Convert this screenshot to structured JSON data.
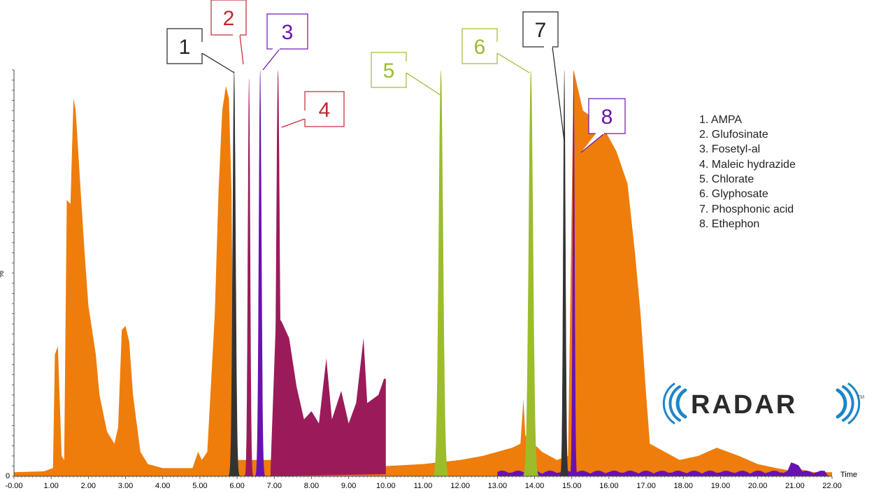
{
  "chart_data": {
    "type": "area",
    "xlabel": "Time",
    "ylabel": "%",
    "xlim": [
      0.0,
      22.0
    ],
    "ylim": [
      0,
      100
    ],
    "x_tick_labels": [
      "-0.00",
      "1.00",
      "2.00",
      "3.00",
      "4.00",
      "5.00",
      "6.00",
      "7.00",
      "8.00",
      "9.00",
      "10.00",
      "11.00",
      "12.00",
      "13.00",
      "14.00",
      "15.00",
      "16.00",
      "17.00",
      "18.00",
      "19.00",
      "20.00",
      "21.00",
      "22.00"
    ],
    "y_tick_labels": [
      "0",
      "%"
    ],
    "colors": {
      "orange": "#ef7d0b",
      "maroon": "#9b1b5a",
      "purple": "#6a12b0",
      "black": "#333333",
      "green": "#9cbc2c",
      "red": "#c0262e"
    },
    "background_series": {
      "name": "",
      "color": "#ef7d0b",
      "points": [
        [
          0.0,
          1
        ],
        [
          0.8,
          1.2
        ],
        [
          1.05,
          2
        ],
        [
          1.1,
          30
        ],
        [
          1.18,
          32
        ],
        [
          1.28,
          5
        ],
        [
          1.35,
          4
        ],
        [
          1.42,
          68
        ],
        [
          1.52,
          67
        ],
        [
          1.6,
          93
        ],
        [
          1.66,
          90
        ],
        [
          1.78,
          72
        ],
        [
          1.9,
          55
        ],
        [
          2.0,
          42
        ],
        [
          2.1,
          36
        ],
        [
          2.2,
          30
        ],
        [
          2.3,
          20
        ],
        [
          2.5,
          11
        ],
        [
          2.7,
          8
        ],
        [
          2.8,
          12
        ],
        [
          2.9,
          36
        ],
        [
          3.0,
          37
        ],
        [
          3.1,
          33
        ],
        [
          3.2,
          20
        ],
        [
          3.4,
          6
        ],
        [
          3.6,
          3
        ],
        [
          4.0,
          2
        ],
        [
          4.8,
          2
        ],
        [
          4.95,
          6
        ],
        [
          5.05,
          4
        ],
        [
          5.2,
          6
        ],
        [
          5.4,
          40
        ],
        [
          5.5,
          70
        ],
        [
          5.6,
          90
        ],
        [
          5.7,
          96
        ],
        [
          5.78,
          93
        ],
        [
          5.85,
          70
        ],
        [
          5.9,
          20
        ],
        [
          6.0,
          4
        ],
        [
          7.0,
          4
        ],
        [
          7.2,
          2.5
        ],
        [
          10.0,
          2.5
        ],
        [
          11.0,
          3
        ],
        [
          12.0,
          4
        ],
        [
          12.6,
          5
        ],
        [
          13.0,
          6
        ],
        [
          13.4,
          7
        ],
        [
          13.62,
          8
        ],
        [
          13.7,
          19
        ],
        [
          13.75,
          10
        ],
        [
          14.2,
          6
        ],
        [
          14.6,
          4
        ],
        [
          14.9,
          5
        ],
        [
          15.05,
          100
        ],
        [
          15.3,
          90
        ],
        [
          15.6,
          88
        ],
        [
          15.9,
          85
        ],
        [
          16.2,
          80
        ],
        [
          16.5,
          72
        ],
        [
          16.7,
          55
        ],
        [
          16.85,
          40
        ],
        [
          17.0,
          20
        ],
        [
          17.1,
          8
        ],
        [
          17.5,
          6
        ],
        [
          17.9,
          4
        ],
        [
          18.4,
          5
        ],
        [
          18.9,
          7
        ],
        [
          19.5,
          5
        ],
        [
          20.0,
          3
        ],
        [
          20.5,
          2
        ],
        [
          20.8,
          1.5
        ],
        [
          21.0,
          2
        ],
        [
          21.5,
          1
        ],
        [
          22.0,
          1
        ]
      ]
    },
    "noise_series": {
      "name": "",
      "color": "#9b1b5a",
      "points": [
        [
          6.9,
          2
        ],
        [
          7.05,
          40
        ],
        [
          7.2,
          38
        ],
        [
          7.4,
          34
        ],
        [
          7.6,
          22
        ],
        [
          7.8,
          14
        ],
        [
          8.0,
          16
        ],
        [
          8.2,
          13
        ],
        [
          8.4,
          29
        ],
        [
          8.55,
          14
        ],
        [
          8.8,
          21
        ],
        [
          9.0,
          13
        ],
        [
          9.2,
          18
        ],
        [
          9.4,
          34
        ],
        [
          9.5,
          18
        ],
        [
          9.8,
          20
        ],
        [
          9.95,
          24
        ],
        [
          10.0,
          24
        ],
        [
          10.0,
          0.5
        ]
      ]
    },
    "peaks": [
      {
        "label": "1",
        "name": "AMPA",
        "rt": 5.92,
        "height": 100,
        "width": 0.09,
        "color": "#333333",
        "label_color": "#222222"
      },
      {
        "label": "2",
        "name": "Glufosinate",
        "rt": 6.32,
        "height": 98,
        "width": 0.07,
        "color": "#9b1b5a",
        "label_color": "#c0262e"
      },
      {
        "label": "3",
        "name": "Fosetyl-al",
        "rt": 6.62,
        "height": 100,
        "width": 0.08,
        "color": "#6a12b0",
        "label_color": "#6a12b0"
      },
      {
        "label": "4",
        "name": "Maleic hydrazide",
        "rt": 7.1,
        "height": 100,
        "width": 0.1,
        "color": "#9b1b5a",
        "label_color": "#c0262e"
      },
      {
        "label": "5",
        "name": "Chlorate",
        "rt": 11.48,
        "height": 100,
        "width": 0.13,
        "color": "#9cbc2c",
        "label_color": "#9cbc2c"
      },
      {
        "label": "6",
        "name": "Glyphosate",
        "rt": 13.9,
        "height": 100,
        "width": 0.13,
        "color": "#9cbc2c",
        "label_color": "#9cbc2c"
      },
      {
        "label": "7",
        "name": "Phosphonic acid",
        "rt": 14.8,
        "height": 100,
        "width": 0.07,
        "color": "#333333",
        "label_color": "#222222"
      },
      {
        "label": "8",
        "name": "Ethephon",
        "rt": 15.05,
        "height": 100,
        "width": 0.06,
        "color": "#6a12b0",
        "label_color": "#6a12b0"
      }
    ],
    "legend_entries": [
      "1.  AMPA",
      "2.  Glufosinate",
      "3.  Fosetyl-al",
      "4.  Maleic hydrazide",
      "5.  Chlorate",
      "6.  Glyphosate",
      "7.  Phosphonic acid",
      "8.  Ethephon"
    ],
    "legend_placement": "top-right",
    "grid": false
  },
  "logo": {
    "text": "RADAR",
    "trademark": "TM",
    "color": "#1e86c8"
  }
}
